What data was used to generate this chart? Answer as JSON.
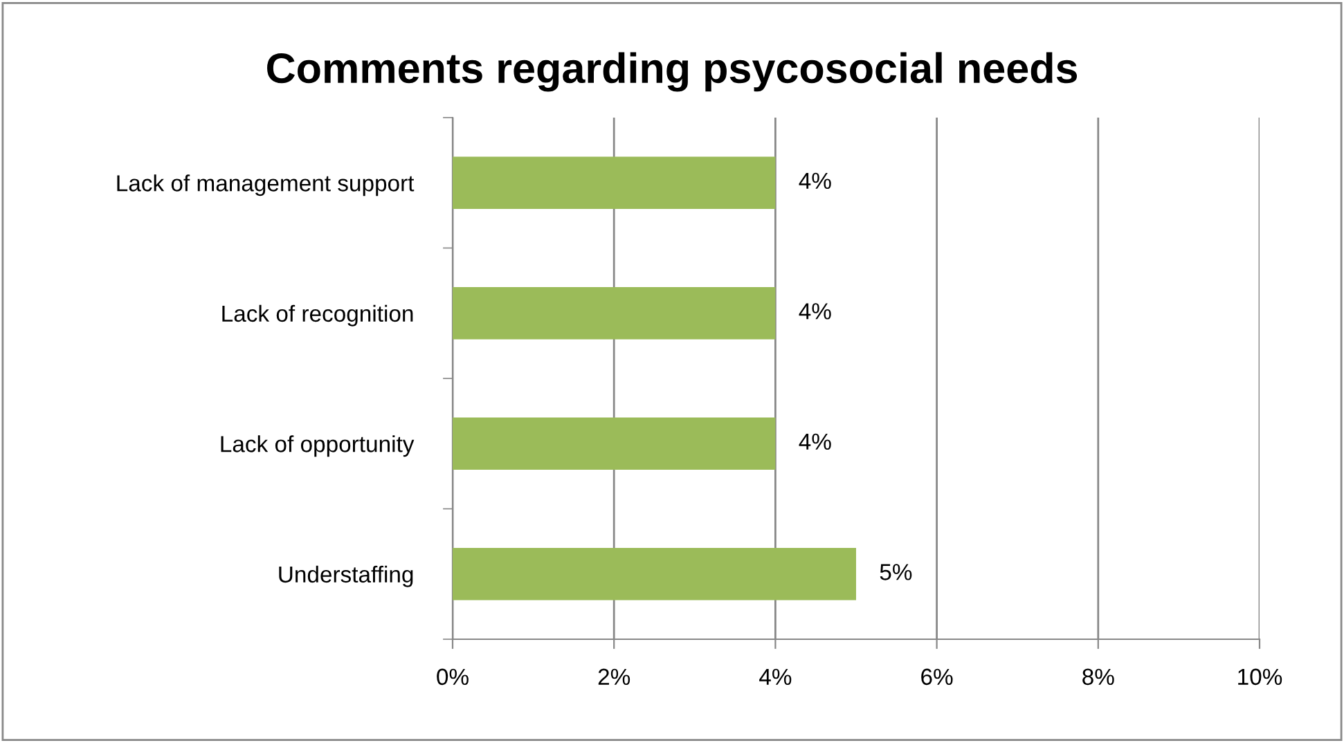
{
  "chart_data": {
    "type": "bar",
    "orientation": "horizontal",
    "title": "Comments regarding psycosocial needs",
    "categories": [
      "Lack of management support",
      "Lack of recognition",
      "Lack of opportunity",
      "Understaffing"
    ],
    "values": [
      4,
      4,
      4,
      5
    ],
    "value_labels": [
      "4%",
      "4%",
      "4%",
      "5%"
    ],
    "color": "#9bbb59",
    "xlim": [
      0,
      10
    ],
    "xticks": [
      {
        "value": 0,
        "label": "0%"
      },
      {
        "value": 2,
        "label": "2%"
      },
      {
        "value": 4,
        "label": "4%"
      },
      {
        "value": 6,
        "label": "6%"
      },
      {
        "value": 8,
        "label": "8%"
      },
      {
        "value": 10,
        "label": "10%"
      }
    ],
    "grid": "x"
  }
}
